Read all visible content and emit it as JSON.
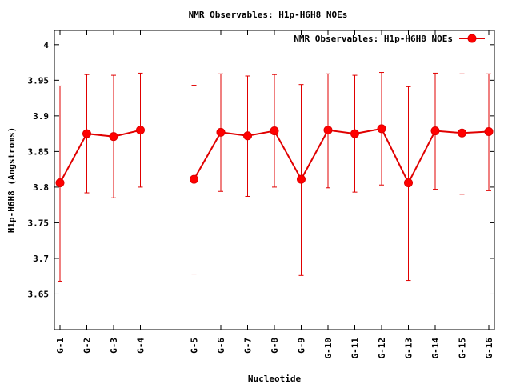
{
  "chart_data": {
    "type": "line",
    "title": "NMR Observables: H1p-H6H8 NOEs",
    "xlabel": "Nucleotide",
    "ylabel": "H1p-H6H8 (Angstroms)",
    "ylim": [
      3.6,
      4.02
    ],
    "y_ticks": [
      "3.65",
      "3.7",
      "3.75",
      "3.8",
      "3.85",
      "3.9",
      "3.95",
      "4"
    ],
    "y_tick_values": [
      3.65,
      3.7,
      3.75,
      3.8,
      3.85,
      3.9,
      3.95,
      4.0
    ],
    "xlim": [
      1,
      17
    ],
    "legend": {
      "position": "top-right"
    },
    "grid": false,
    "colors": {
      "series": "#e00000",
      "axis": "#000000"
    },
    "series": [
      {
        "name": "NMR Observables: H1p-H6H8 NOEs",
        "points": [
          {
            "label": "G-1",
            "x": 1,
            "y": 3.806,
            "low": 3.668,
            "high": 3.942
          },
          {
            "label": "G-2",
            "x": 2,
            "y": 3.875,
            "low": 3.792,
            "high": 3.958
          },
          {
            "label": "G-3",
            "x": 3,
            "y": 3.871,
            "low": 3.785,
            "high": 3.957
          },
          {
            "label": "G-4",
            "x": 4,
            "y": 3.88,
            "low": 3.8,
            "high": 3.96
          },
          {
            "label": "G-5",
            "x": 6,
            "y": 3.811,
            "low": 3.678,
            "high": 3.943
          },
          {
            "label": "G-6",
            "x": 7,
            "y": 3.877,
            "low": 3.794,
            "high": 3.959
          },
          {
            "label": "G-7",
            "x": 8,
            "y": 3.872,
            "low": 3.787,
            "high": 3.956
          },
          {
            "label": "G-8",
            "x": 9,
            "y": 3.879,
            "low": 3.8,
            "high": 3.958
          },
          {
            "label": "G-9",
            "x": 10,
            "y": 3.811,
            "low": 3.676,
            "high": 3.944
          },
          {
            "label": "G-10",
            "x": 11,
            "y": 3.88,
            "low": 3.799,
            "high": 3.959
          },
          {
            "label": "G-11",
            "x": 12,
            "y": 3.875,
            "low": 3.793,
            "high": 3.957
          },
          {
            "label": "G-12",
            "x": 13,
            "y": 3.882,
            "low": 3.803,
            "high": 3.961
          },
          {
            "label": "G-13",
            "x": 14,
            "y": 3.806,
            "low": 3.669,
            "high": 3.941
          },
          {
            "label": "G-14",
            "x": 15,
            "y": 3.879,
            "low": 3.797,
            "high": 3.96
          },
          {
            "label": "G-15",
            "x": 16,
            "y": 3.876,
            "low": 3.79,
            "high": 3.959
          },
          {
            "label": "G-16",
            "x": 17,
            "y": 3.878,
            "low": 3.795,
            "high": 3.959
          }
        ],
        "segments": [
          [
            0,
            1,
            2,
            3
          ],
          [
            4,
            5,
            6,
            7,
            8,
            9,
            10,
            11,
            12,
            13,
            14,
            15
          ]
        ]
      }
    ]
  }
}
